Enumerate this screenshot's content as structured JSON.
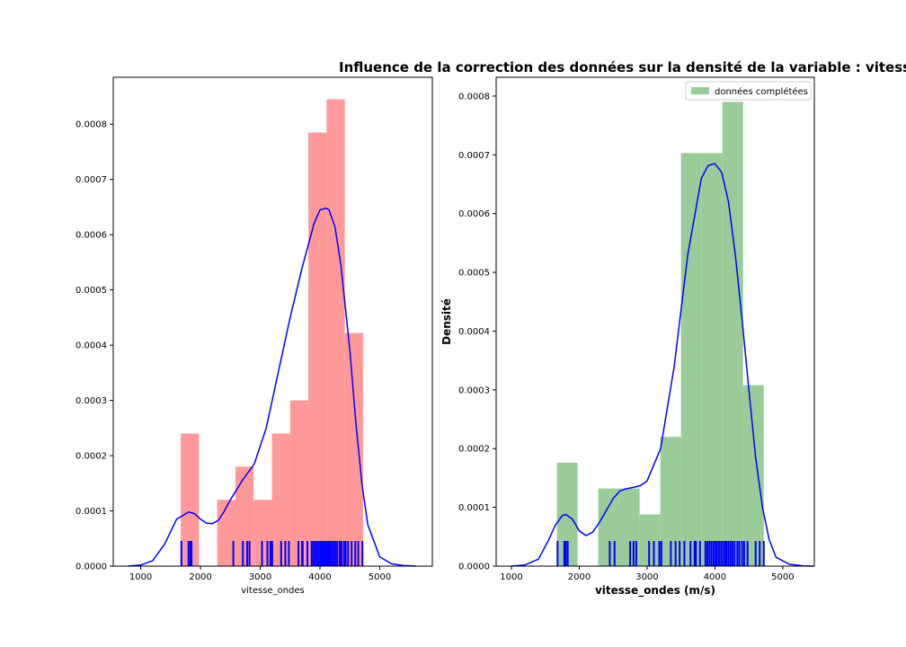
{
  "figure": {
    "suptitle": "Influence de la correction des données sur la densité de la variable : vitess"
  },
  "chart_data": [
    {
      "type": "bar",
      "title": "",
      "xlabel": "vitesse_ondes",
      "ylabel": "",
      "xlim": [
        540,
        5880
      ],
      "ylim": [
        0,
        0.000885
      ],
      "xticks": [
        1000,
        2000,
        3000,
        4000,
        5000
      ],
      "yticks": [
        0,
        0.0001,
        0.0002,
        0.0003,
        0.0004,
        0.0005,
        0.0006,
        0.0007,
        0.0008
      ],
      "ytick_labels": [
        "0.0000",
        "0.0001",
        "0.0002",
        "0.0003",
        "0.0004",
        "0.0005",
        "0.0006",
        "0.0007",
        "0.0008"
      ],
      "bar_color": "#ff9999",
      "kde_color": "#0000ff",
      "rug_color": "#0000ff",
      "histogram": {
        "bin_edges": [
          1670,
          1975,
          2280,
          2585,
          2890,
          3195,
          3500,
          3805,
          4110,
          4415,
          4720
        ],
        "values": [
          0.00024,
          0.0,
          0.00012,
          0.00018,
          0.00012,
          0.00024,
          0.0003,
          0.000785,
          0.000845,
          0.000422
        ]
      },
      "kde": {
        "x": [
          790,
          1000,
          1200,
          1400,
          1600,
          1800,
          1900,
          2000,
          2100,
          2200,
          2300,
          2400,
          2500,
          2700,
          2900,
          3100,
          3300,
          3500,
          3700,
          3900,
          4000,
          4100,
          4150,
          4250,
          4350,
          4500,
          4600,
          4700,
          4800,
          5000,
          5200,
          5400,
          5600
        ],
        "y": [
          0.0,
          2e-06,
          1e-05,
          4e-05,
          8.5e-05,
          9.8e-05,
          9.5e-05,
          8.5e-05,
          7.8e-05,
          7.7e-05,
          8.3e-05,
          0.0001,
          0.00012,
          0.000155,
          0.000185,
          0.00025,
          0.00035,
          0.00045,
          0.00054,
          0.00062,
          0.000645,
          0.000648,
          0.000645,
          0.000615,
          0.000545,
          0.00039,
          0.00026,
          0.00015,
          7.5e-05,
          1.7e-05,
          4e-06,
          1e-06,
          0.0
        ]
      },
      "rug": [
        1680,
        1800,
        1830,
        1850,
        2550,
        2710,
        2780,
        2820,
        3030,
        3120,
        3170,
        3200,
        3350,
        3420,
        3480,
        3640,
        3700,
        3710,
        3790,
        3860,
        3890,
        3920,
        3950,
        3980,
        4010,
        4030,
        4060,
        4090,
        4120,
        4150,
        4170,
        4200,
        4230,
        4260,
        4290,
        4330,
        4360,
        4400,
        4430,
        4470,
        4530,
        4590,
        4640,
        4710
      ]
    },
    {
      "type": "bar",
      "title": "",
      "xlabel": "vitesse_ondes (m/s)",
      "ylabel": "Densité",
      "xlim": [
        775,
        5465
      ],
      "ylim": [
        0,
        0.000832
      ],
      "xticks": [
        1000,
        2000,
        3000,
        4000,
        5000
      ],
      "yticks": [
        0,
        0.0001,
        0.0002,
        0.0003,
        0.0004,
        0.0005,
        0.0006,
        0.0007,
        0.0008
      ],
      "ytick_labels": [
        "0.0000",
        "0.0001",
        "0.0002",
        "0.0003",
        "0.0004",
        "0.0005",
        "0.0006",
        "0.0007",
        "0.0008"
      ],
      "bar_color": "#99cc99",
      "kde_color": "#0000ff",
      "rug_color": "#0000ff",
      "legend": {
        "label": "données complétées",
        "position": "upper right"
      },
      "histogram": {
        "bin_edges": [
          1670,
          1975,
          2280,
          2585,
          2890,
          3195,
          3500,
          3805,
          4110,
          4415,
          4720
        ],
        "values": [
          0.000176,
          0.0,
          0.000132,
          0.000132,
          8.8e-05,
          0.00022,
          0.000703,
          0.000703,
          0.00079,
          0.000308
        ]
      },
      "kde": {
        "x": [
          1000,
          1200,
          1400,
          1550,
          1650,
          1750,
          1800,
          1900,
          2000,
          2100,
          2200,
          2300,
          2400,
          2500,
          2600,
          2700,
          2800,
          2900,
          3000,
          3200,
          3400,
          3600,
          3800,
          3900,
          4000,
          4100,
          4200,
          4300,
          4400,
          4500,
          4600,
          4700,
          4800,
          4900,
          5100,
          5300,
          5450
        ],
        "y": [
          0.0,
          2e-06,
          1.2e-05,
          4.5e-05,
          7e-05,
          8.6e-05,
          8.8e-05,
          8e-05,
          6e-05,
          5.2e-05,
          5.8e-05,
          7.5e-05,
          9.5e-05,
          0.000115,
          0.000128,
          0.000132,
          0.000134,
          0.000137,
          0.000145,
          0.0002,
          0.00034,
          0.00053,
          0.00066,
          0.000682,
          0.000685,
          0.00067,
          0.00062,
          0.00053,
          0.00042,
          0.0003,
          0.000185,
          0.0001,
          4.5e-05,
          1.5e-05,
          3e-06,
          5e-07,
          0.0
        ]
      },
      "rug": [
        1680,
        1780,
        1800,
        1830,
        2450,
        2520,
        2750,
        2800,
        2840,
        3030,
        3100,
        3180,
        3210,
        3350,
        3420,
        3480,
        3550,
        3640,
        3700,
        3720,
        3780,
        3860,
        3890,
        3920,
        3950,
        3980,
        4010,
        4030,
        4060,
        4090,
        4120,
        4150,
        4170,
        4200,
        4230,
        4260,
        4290,
        4330,
        4360,
        4400,
        4430,
        4480,
        4600,
        4660,
        4720
      ]
    }
  ]
}
